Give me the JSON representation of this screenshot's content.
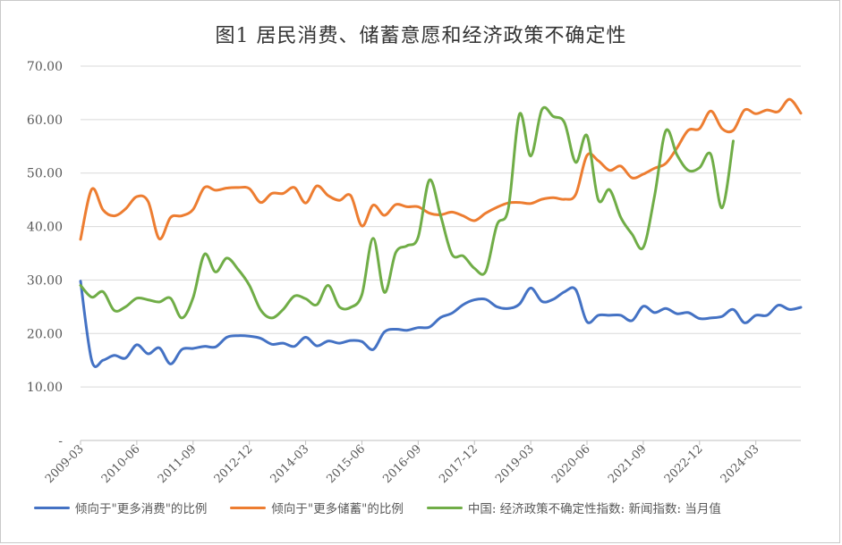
{
  "chart_data": {
    "type": "line",
    "title": "图1 居民消费、储蓄意愿和经济政策不确定性",
    "xlabel": "",
    "ylabel": "",
    "ylim": [
      0,
      70
    ],
    "y_ticks": [
      "-",
      "10.00",
      "20.00",
      "30.00",
      "40.00",
      "50.00",
      "60.00",
      "70.00"
    ],
    "x_start": "2009-03",
    "x_ticks": [
      "2009-03",
      "2010-06",
      "2011-09",
      "2012-12",
      "2014-03",
      "2015-06",
      "2016-09",
      "2017-12",
      "2019-03",
      "2020-06",
      "2021-09",
      "2022-12",
      "2024-03"
    ],
    "gridlines": true,
    "legend_position": "bottom",
    "series": [
      {
        "name": "倾向于\"更多消费\"的比例",
        "color": "#4472c4",
        "points": [
          [
            "2009-03",
            29.8
          ],
          [
            "2009-06",
            14.9
          ],
          [
            "2009-09",
            15.0
          ],
          [
            "2009-12",
            15.9
          ],
          [
            "2010-03",
            15.4
          ],
          [
            "2010-06",
            17.9
          ],
          [
            "2010-09",
            16.2
          ],
          [
            "2010-12",
            17.3
          ],
          [
            "2011-03",
            14.3
          ],
          [
            "2011-06",
            17.0
          ],
          [
            "2011-09",
            17.2
          ],
          [
            "2011-12",
            17.6
          ],
          [
            "2012-03",
            17.5
          ],
          [
            "2012-06",
            19.3
          ],
          [
            "2012-09",
            19.6
          ],
          [
            "2012-12",
            19.5
          ],
          [
            "2013-03",
            19.1
          ],
          [
            "2013-06",
            18.0
          ],
          [
            "2013-09",
            18.2
          ],
          [
            "2013-12",
            17.6
          ],
          [
            "2014-03",
            19.3
          ],
          [
            "2014-06",
            17.7
          ],
          [
            "2014-09",
            18.6
          ],
          [
            "2014-12",
            18.2
          ],
          [
            "2015-03",
            18.7
          ],
          [
            "2015-06",
            18.5
          ],
          [
            "2015-09",
            17.0
          ],
          [
            "2015-12",
            20.3
          ],
          [
            "2016-03",
            20.8
          ],
          [
            "2016-06",
            20.6
          ],
          [
            "2016-09",
            21.1
          ],
          [
            "2016-12",
            21.2
          ],
          [
            "2017-03",
            23.0
          ],
          [
            "2017-06",
            23.8
          ],
          [
            "2017-09",
            25.4
          ],
          [
            "2017-12",
            26.3
          ],
          [
            "2018-03",
            26.4
          ],
          [
            "2018-06",
            25.0
          ],
          [
            "2018-09",
            24.7
          ],
          [
            "2018-12",
            25.5
          ],
          [
            "2019-03",
            28.5
          ],
          [
            "2019-06",
            26.0
          ],
          [
            "2019-09",
            26.4
          ],
          [
            "2019-12",
            27.8
          ],
          [
            "2020-03",
            28.2
          ],
          [
            "2020-06",
            22.2
          ],
          [
            "2020-09",
            23.4
          ],
          [
            "2020-12",
            23.4
          ],
          [
            "2021-03",
            23.4
          ],
          [
            "2021-06",
            22.4
          ],
          [
            "2021-09",
            25.1
          ],
          [
            "2021-12",
            23.9
          ],
          [
            "2022-03",
            24.7
          ],
          [
            "2022-06",
            23.7
          ],
          [
            "2022-09",
            23.9
          ],
          [
            "2022-12",
            22.8
          ],
          [
            "2023-03",
            22.9
          ],
          [
            "2023-06",
            23.2
          ],
          [
            "2023-09",
            24.5
          ],
          [
            "2023-12",
            22.0
          ],
          [
            "2024-03",
            23.4
          ],
          [
            "2024-06",
            23.4
          ],
          [
            "2024-09",
            25.3
          ],
          [
            "2024-12",
            24.5
          ],
          [
            "2025-03",
            24.9
          ]
        ]
      },
      {
        "name": "倾向于\"更多储蓄\"的比例",
        "color": "#ed7d31",
        "points": [
          [
            "2009-03",
            37.6
          ],
          [
            "2009-06",
            47.0
          ],
          [
            "2009-09",
            43.1
          ],
          [
            "2009-12",
            42.0
          ],
          [
            "2010-03",
            43.3
          ],
          [
            "2010-06",
            45.6
          ],
          [
            "2010-09",
            44.7
          ],
          [
            "2010-12",
            37.7
          ],
          [
            "2011-03",
            41.7
          ],
          [
            "2011-06",
            42.0
          ],
          [
            "2011-09",
            43.2
          ],
          [
            "2011-12",
            47.3
          ],
          [
            "2012-03",
            46.8
          ],
          [
            "2012-06",
            47.2
          ],
          [
            "2012-09",
            47.3
          ],
          [
            "2012-12",
            47.1
          ],
          [
            "2013-03",
            44.5
          ],
          [
            "2013-06",
            46.2
          ],
          [
            "2013-09",
            46.2
          ],
          [
            "2013-12",
            47.3
          ],
          [
            "2014-03",
            44.4
          ],
          [
            "2014-06",
            47.6
          ],
          [
            "2014-09",
            45.8
          ],
          [
            "2014-12",
            44.9
          ],
          [
            "2015-03",
            45.8
          ],
          [
            "2015-06",
            40.1
          ],
          [
            "2015-09",
            44.0
          ],
          [
            "2015-12",
            42.1
          ],
          [
            "2016-03",
            44.1
          ],
          [
            "2016-06",
            43.7
          ],
          [
            "2016-09",
            43.7
          ],
          [
            "2016-12",
            42.5
          ],
          [
            "2017-03",
            42.2
          ],
          [
            "2017-06",
            42.7
          ],
          [
            "2017-09",
            42.0
          ],
          [
            "2017-12",
            41.1
          ],
          [
            "2018-03",
            42.5
          ],
          [
            "2018-06",
            43.6
          ],
          [
            "2018-09",
            44.4
          ],
          [
            "2018-12",
            44.5
          ],
          [
            "2019-03",
            44.3
          ],
          [
            "2019-06",
            45.1
          ],
          [
            "2019-09",
            45.4
          ],
          [
            "2019-12",
            45.1
          ],
          [
            "2020-03",
            46.0
          ],
          [
            "2020-06",
            53.3
          ],
          [
            "2020-09",
            52.3
          ],
          [
            "2020-12",
            50.5
          ],
          [
            "2021-03",
            51.3
          ],
          [
            "2021-06",
            49.1
          ],
          [
            "2021-09",
            49.8
          ],
          [
            "2021-12",
            50.9
          ],
          [
            "2022-03",
            51.8
          ],
          [
            "2022-06",
            54.7
          ],
          [
            "2022-09",
            58.0
          ],
          [
            "2022-12",
            58.3
          ],
          [
            "2023-03",
            61.6
          ],
          [
            "2023-06",
            58.3
          ],
          [
            "2023-09",
            58.0
          ],
          [
            "2023-12",
            61.8
          ],
          [
            "2024-03",
            61.1
          ],
          [
            "2024-06",
            61.8
          ],
          [
            "2024-09",
            61.5
          ],
          [
            "2024-12",
            63.8
          ],
          [
            "2025-03",
            61.2
          ]
        ]
      },
      {
        "name": "中国: 经济政策不确定性指数: 新闻指数: 当月值",
        "color": "#70ad47",
        "points": [
          [
            "2009-03",
            29.0
          ],
          [
            "2009-06",
            26.8
          ],
          [
            "2009-09",
            27.8
          ],
          [
            "2009-12",
            24.3
          ],
          [
            "2010-03",
            25.0
          ],
          [
            "2010-06",
            26.6
          ],
          [
            "2010-09",
            26.3
          ],
          [
            "2010-12",
            25.9
          ],
          [
            "2011-03",
            26.6
          ],
          [
            "2011-06",
            22.9
          ],
          [
            "2011-09",
            26.7
          ],
          [
            "2011-12",
            34.8
          ],
          [
            "2012-03",
            31.5
          ],
          [
            "2012-06",
            34.1
          ],
          [
            "2012-09",
            32.0
          ],
          [
            "2012-12",
            29.0
          ],
          [
            "2013-03",
            24.4
          ],
          [
            "2013-06",
            22.9
          ],
          [
            "2013-09",
            24.5
          ],
          [
            "2013-12",
            27.0
          ],
          [
            "2014-03",
            26.5
          ],
          [
            "2014-06",
            25.4
          ],
          [
            "2014-09",
            29.0
          ],
          [
            "2014-12",
            25.0
          ],
          [
            "2015-03",
            24.9
          ],
          [
            "2015-06",
            27.3
          ],
          [
            "2015-09",
            37.8
          ],
          [
            "2015-12",
            27.7
          ],
          [
            "2016-03",
            35.1
          ],
          [
            "2016-06",
            36.4
          ],
          [
            "2016-09",
            38.0
          ],
          [
            "2016-12",
            48.7
          ],
          [
            "2017-03",
            42.0
          ],
          [
            "2017-06",
            34.8
          ],
          [
            "2017-09",
            34.5
          ],
          [
            "2017-12",
            32.2
          ],
          [
            "2018-03",
            31.6
          ],
          [
            "2018-06",
            40.3
          ],
          [
            "2018-09",
            43.3
          ],
          [
            "2018-12",
            61.0
          ],
          [
            "2019-03",
            53.2
          ],
          [
            "2019-06",
            61.9
          ],
          [
            "2019-09",
            60.6
          ],
          [
            "2019-12",
            59.4
          ],
          [
            "2020-03",
            52.0
          ],
          [
            "2020-06",
            57.0
          ],
          [
            "2020-09",
            45.0
          ],
          [
            "2020-12",
            46.9
          ],
          [
            "2021-03",
            41.7
          ],
          [
            "2021-06",
            38.6
          ],
          [
            "2021-09",
            36.1
          ],
          [
            "2021-12",
            45.7
          ],
          [
            "2022-03",
            57.9
          ],
          [
            "2022-06",
            53.4
          ],
          [
            "2022-09",
            50.5
          ],
          [
            "2022-12",
            51.0
          ],
          [
            "2023-03",
            53.5
          ],
          [
            "2023-06",
            43.5
          ],
          [
            "2023-09",
            56.0
          ]
        ]
      }
    ]
  }
}
